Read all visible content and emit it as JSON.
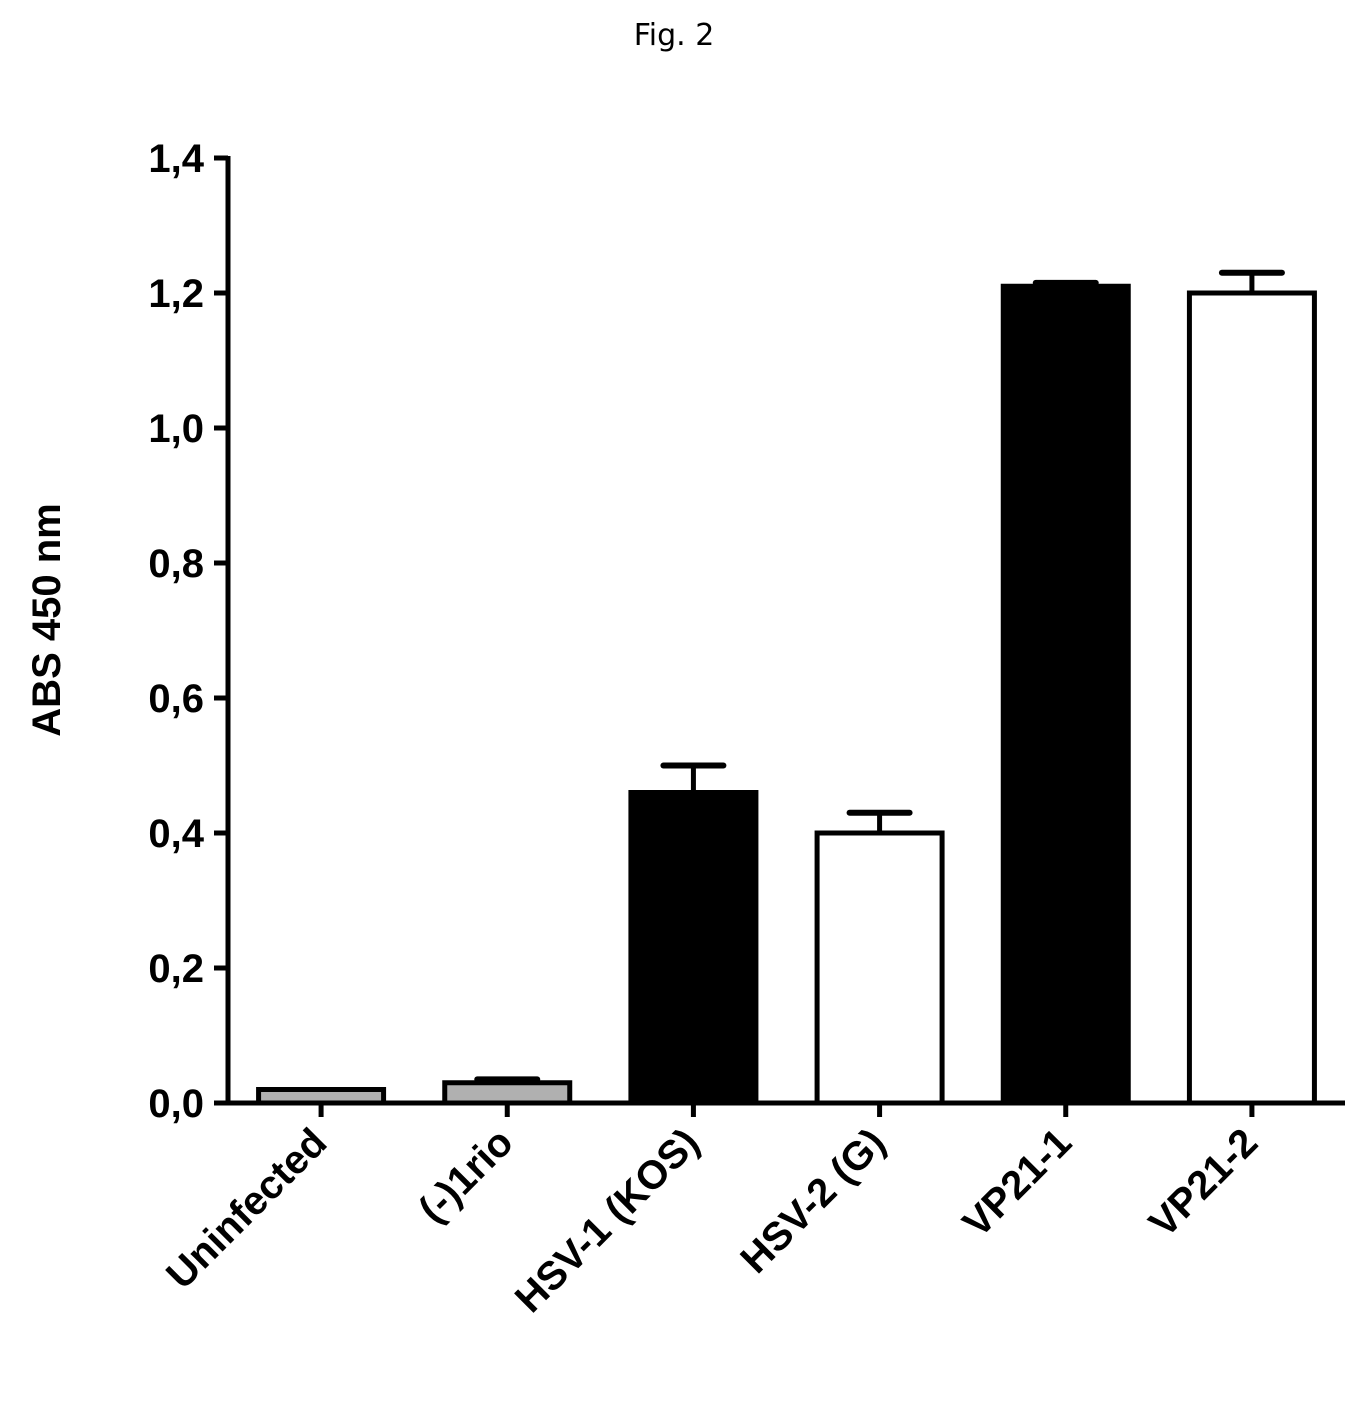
{
  "figure": {
    "title": "Fig. 2"
  },
  "chart_data": {
    "type": "bar",
    "title": "",
    "xlabel": "",
    "ylabel": "ABS 450 nm",
    "ylim": [
      0,
      1.4
    ],
    "yticks": [
      "0,0",
      "0,2",
      "0,4",
      "0,6",
      "0,8",
      "1,0",
      "1,2",
      "1,4"
    ],
    "ytick_values": [
      0,
      0.2,
      0.4,
      0.6,
      0.8,
      1.0,
      1.2,
      1.4
    ],
    "categories": [
      "Uninfected",
      "(-)1rio",
      "HSV-1 (KOS)",
      "HSV-2 (G)",
      "VP21-1",
      "VP21-2"
    ],
    "values": [
      0.02,
      0.03,
      0.46,
      0.4,
      1.21,
      1.2
    ],
    "errors": [
      0.0,
      0.005,
      0.04,
      0.03,
      0.005,
      0.03
    ],
    "fills": [
      "#b0b0b0",
      "#b0b0b0",
      "#000000",
      "#ffffff",
      "#000000",
      "#ffffff"
    ],
    "grid": false,
    "legend": "none"
  }
}
